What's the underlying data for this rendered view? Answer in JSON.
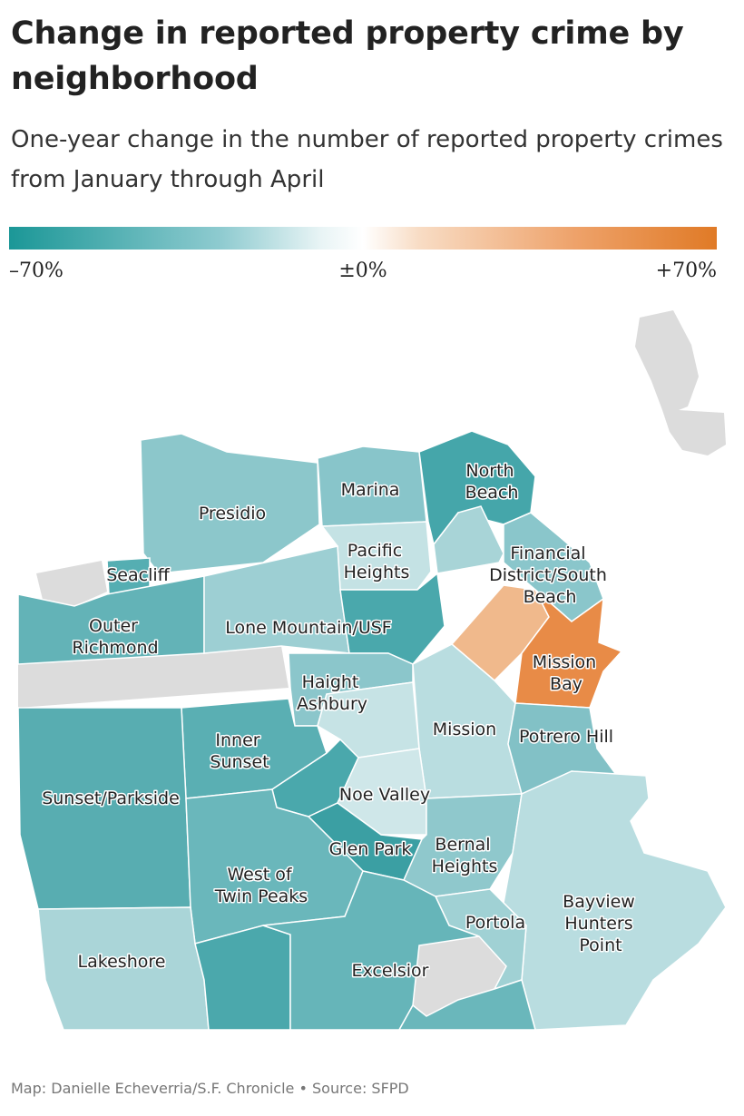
{
  "title": "Change in reported property crime by neighborhood",
  "subtitle": "One-year change in the number of reported property crimes from January through April",
  "legend": {
    "min_label": "–70%",
    "mid_label": "±0%",
    "max_label": "+70%",
    "min_color": "#1b9797",
    "mid_color": "#ffffff",
    "max_color": "#e07a26"
  },
  "no_data_color": "#dcdcdc",
  "neighborhoods": [
    {
      "id": "presidio",
      "lines": [
        "Presidio"
      ],
      "color": "#8cc7cb"
    },
    {
      "id": "marina",
      "lines": [
        "Marina"
      ],
      "color": "#88c5ca"
    },
    {
      "id": "north-beach",
      "lines": [
        "North",
        "Beach"
      ],
      "color": "#45a6aa"
    },
    {
      "id": "seacliff",
      "lines": [
        "Seacliff"
      ],
      "color": "#55aeb2"
    },
    {
      "id": "pacific-heights",
      "lines": [
        "Pacific",
        "Heights"
      ],
      "color": "#c4e2e4"
    },
    {
      "id": "financial-district-south-beach",
      "lines": [
        "Financial",
        "District/South",
        "Beach"
      ],
      "color": "#8ac6cb"
    },
    {
      "id": "outer-richmond",
      "lines": [
        "Outer",
        "Richmond"
      ],
      "color": "#63b3b7"
    },
    {
      "id": "lone-mountain-usf",
      "lines": [
        "Lone Mountain/USF"
      ],
      "color": "#9dcfd3"
    },
    {
      "id": "haight-ashbury",
      "lines": [
        "Haight",
        "Ashbury"
      ],
      "color": "#8bc6cb"
    },
    {
      "id": "mission-bay",
      "lines": [
        "Mission",
        "Bay"
      ],
      "color": "#e88b47"
    },
    {
      "id": "inner-sunset",
      "lines": [
        "Inner",
        "Sunset"
      ],
      "color": "#5aafb3"
    },
    {
      "id": "mission",
      "lines": [
        "Mission"
      ],
      "color": "#b9dde0"
    },
    {
      "id": "potrero-hill",
      "lines": [
        "Potrero Hill"
      ],
      "color": "#82c1c6"
    },
    {
      "id": "sunset-parkside",
      "lines": [
        "Sunset/Parkside"
      ],
      "color": "#58adb1"
    },
    {
      "id": "noe-valley",
      "lines": [
        "Noe Valley"
      ],
      "color": "#cfe7e9"
    },
    {
      "id": "glen-park",
      "lines": [
        "Glen Park"
      ],
      "color": "#3b9fa3"
    },
    {
      "id": "bernal-heights",
      "lines": [
        "Bernal",
        "Heights"
      ],
      "color": "#8fc8cc"
    },
    {
      "id": "west-of-twin-peaks",
      "lines": [
        "West of",
        "Twin Peaks"
      ],
      "color": "#6ab7bb"
    },
    {
      "id": "bayview-hunters-point",
      "lines": [
        "Bayview",
        "Hunters",
        "Point"
      ],
      "color": "#b9dde0"
    },
    {
      "id": "portola",
      "lines": [
        "Portola"
      ],
      "color": "#a0d1d4"
    },
    {
      "id": "lakeshore",
      "lines": [
        "Lakeshore"
      ],
      "color": "#aad5d8"
    },
    {
      "id": "excelsior",
      "lines": [
        "Excelsior"
      ],
      "color": "#66b5b9"
    }
  ],
  "unlabeled_areas": [
    {
      "id": "tenderloin",
      "color": "#f0b98c"
    },
    {
      "id": "western-addition",
      "color": "#4aa8ac"
    },
    {
      "id": "russian-hill",
      "color": "#a8d4d7"
    },
    {
      "id": "chinatown",
      "color": "#c9e4e6"
    },
    {
      "id": "castro",
      "color": "#c6e3e5"
    },
    {
      "id": "twin-peaks",
      "color": "#4aa8ac"
    },
    {
      "id": "oceanview",
      "color": "#4ba8ac"
    },
    {
      "id": "visitacion-valley",
      "color": "#6ab7bb"
    }
  ],
  "credit": "Map: Danielle Echeverria/S.F. Chronicle • Source: SFPD"
}
